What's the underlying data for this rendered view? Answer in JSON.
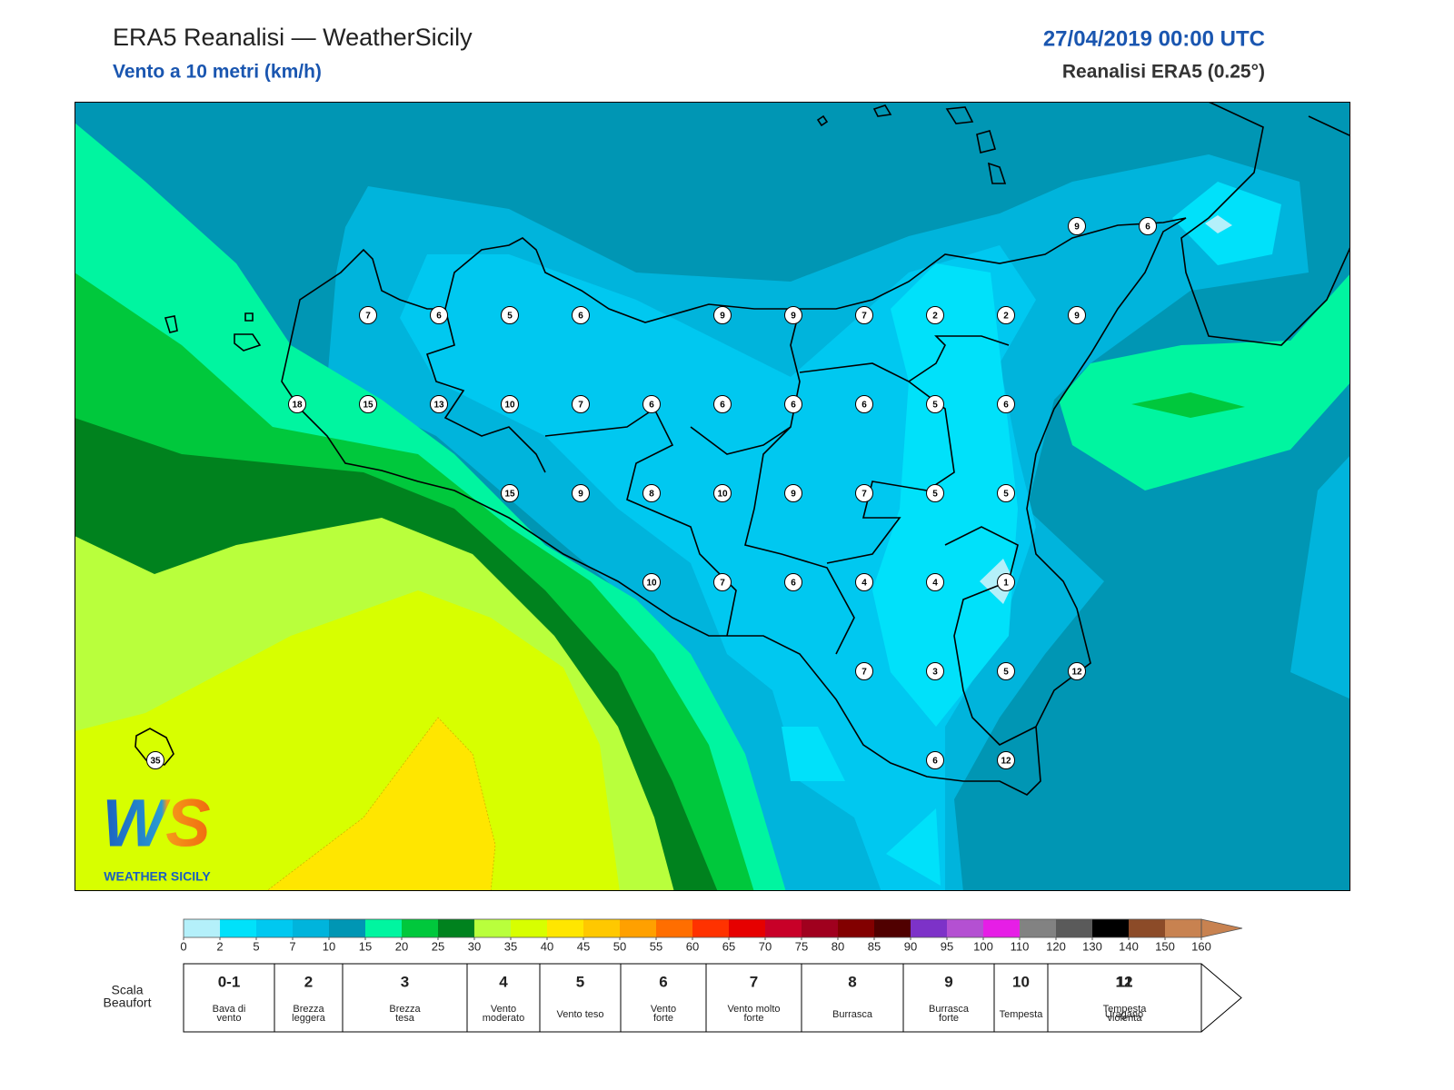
{
  "header": {
    "title": "ERA5 Reanalisi — WeatherSicily",
    "subtitle": "Vento a 10 metri (km/h)",
    "date": "27/04/2019 00:00 UTC",
    "source": "Reanalisi ERA5 (0.25°)"
  },
  "wind_grid": {
    "rows": [
      [
        null,
        null,
        null,
        null,
        null,
        null,
        null,
        null,
        null,
        null,
        null,
        null,
        null,
        9,
        6
      ],
      [
        null,
        null,
        null,
        7,
        6,
        5,
        6,
        null,
        9,
        9,
        7,
        2,
        2,
        9,
        null
      ],
      [
        null,
        null,
        18,
        15,
        13,
        10,
        7,
        6,
        6,
        6,
        6,
        5,
        6,
        null,
        null
      ],
      [
        null,
        null,
        null,
        null,
        null,
        15,
        9,
        8,
        10,
        9,
        7,
        5,
        5,
        null,
        null
      ],
      [
        null,
        null,
        null,
        null,
        null,
        null,
        null,
        10,
        7,
        6,
        4,
        4,
        1,
        null,
        null
      ],
      [
        null,
        null,
        null,
        null,
        null,
        null,
        null,
        null,
        null,
        null,
        7,
        3,
        5,
        12,
        null
      ],
      [
        35,
        null,
        null,
        null,
        null,
        null,
        null,
        null,
        null,
        null,
        null,
        6,
        12,
        null,
        null
      ]
    ]
  },
  "logo": {
    "mark": "WS",
    "text": "WEATHER SICILY"
  },
  "colorbar": {
    "bins": [
      0,
      2,
      5,
      7,
      10,
      15,
      20,
      25,
      30,
      35,
      40,
      45,
      50,
      55,
      60,
      65,
      70,
      75,
      80,
      85,
      90,
      95,
      100,
      110,
      120,
      130,
      140,
      150,
      160
    ],
    "colors": [
      "#b4f0fa",
      "#00e1fa",
      "#00c8f0",
      "#00b4dc",
      "#0096b4",
      "#00f5a0",
      "#00c83c",
      "#00821e",
      "#b9ff3c",
      "#d7ff00",
      "#ffe600",
      "#ffc800",
      "#ffa000",
      "#ff6e00",
      "#ff3200",
      "#e60000",
      "#c80028",
      "#a0001e",
      "#820000",
      "#500000",
      "#7d32c8",
      "#b450d2",
      "#e61ee6",
      "#828282",
      "#5a5a5a",
      "#000000",
      "#8c4b28",
      "#c88250"
    ]
  },
  "beaufort": {
    "label": [
      "Scala",
      "Beaufort"
    ],
    "entries": [
      {
        "force": "0-1",
        "description": [
          "Bava di",
          "vento"
        ]
      },
      {
        "force": "2",
        "description": [
          "Brezza",
          "leggera"
        ]
      },
      {
        "force": "3",
        "description": [
          "Brezza",
          "tesa"
        ]
      },
      {
        "force": "4",
        "description": [
          "Vento",
          "moderato"
        ]
      },
      {
        "force": "5",
        "description": [
          "Vento teso"
        ]
      },
      {
        "force": "6",
        "description": [
          "Vento",
          "forte"
        ]
      },
      {
        "force": "7",
        "description": [
          "Vento molto",
          "forte"
        ]
      },
      {
        "force": "8",
        "description": [
          "Burrasca"
        ]
      },
      {
        "force": "9",
        "description": [
          "Burrasca",
          "forte"
        ]
      },
      {
        "force": "10",
        "description": [
          "Tempesta"
        ]
      },
      {
        "force": "11",
        "description": [
          "Tempesta",
          "violenta"
        ]
      },
      {
        "force": "12",
        "description": [
          "Uragano"
        ]
      }
    ]
  }
}
